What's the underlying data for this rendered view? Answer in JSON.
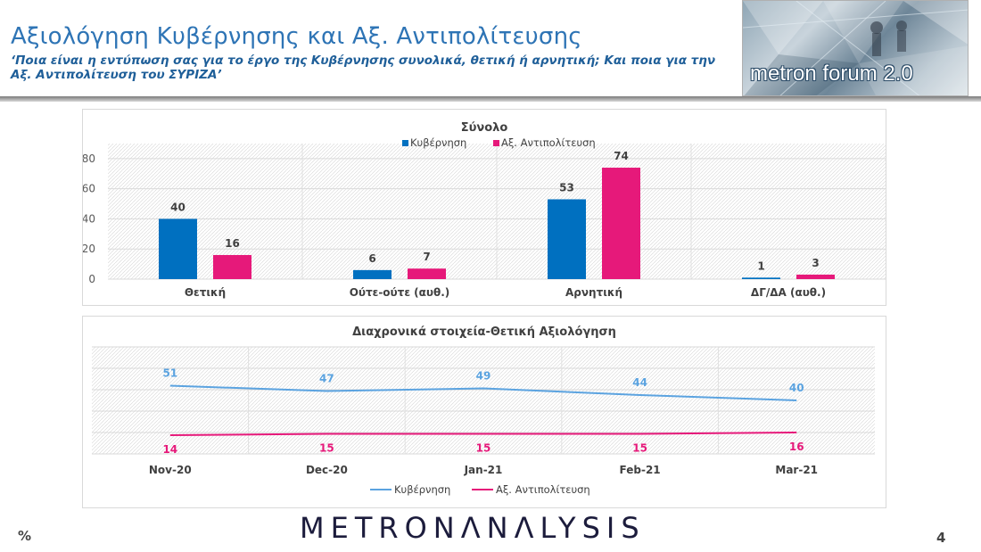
{
  "header": {
    "title": "Αξιολόγηση Κυβέρνησης και Αξ. Αντιπολίτευσης",
    "subtitle": "‘Ποια είναι η εντύπωση σας για το έργο της Κυβέρνησης συνολικά, θετική ή αρνητική; Και ποια για την Αξ. Αντιπολίτευση του ΣΥΡΙΖΑ’",
    "logo_text": "metron forum 2.0"
  },
  "footer": {
    "brand": "METRONΛNΛLYSIS",
    "unit": "%",
    "page_number": "4"
  },
  "colors": {
    "government": "#0070c0",
    "opposition": "#e6197a",
    "government_line": "#5ba3e0"
  },
  "chart_data": [
    {
      "type": "bar",
      "title": "Σύνολο",
      "categories": [
        "Θετική",
        "Ούτε-ούτε (αυθ.)",
        "Αρνητική",
        "ΔΓ/ΔΑ (αυθ.)"
      ],
      "series": [
        {
          "name": "Κυβέρνηση",
          "values": [
            40,
            6,
            53,
            1
          ]
        },
        {
          "name": "Αξ. Αντιπολίτευση",
          "values": [
            16,
            7,
            74,
            3
          ]
        }
      ],
      "ylim": [
        0,
        90
      ],
      "yticks": [
        0,
        20,
        40,
        60,
        80
      ],
      "legend": "top-center",
      "grid": true
    },
    {
      "type": "line",
      "title": "Διαχρονικά στοιχεία-Θετική Αξιολόγηση",
      "x": [
        "Nov-20",
        "Dec-20",
        "Jan-21",
        "Feb-21",
        "Mar-21"
      ],
      "series": [
        {
          "name": "Κυβέρνηση",
          "values": [
            51,
            47,
            49,
            44,
            40
          ]
        },
        {
          "name": "Αξ. Αντιπολίτευση",
          "values": [
            14,
            15,
            15,
            15,
            16
          ]
        }
      ],
      "ylim": [
        0,
        80
      ],
      "legend": "bottom-center",
      "grid": true
    }
  ]
}
